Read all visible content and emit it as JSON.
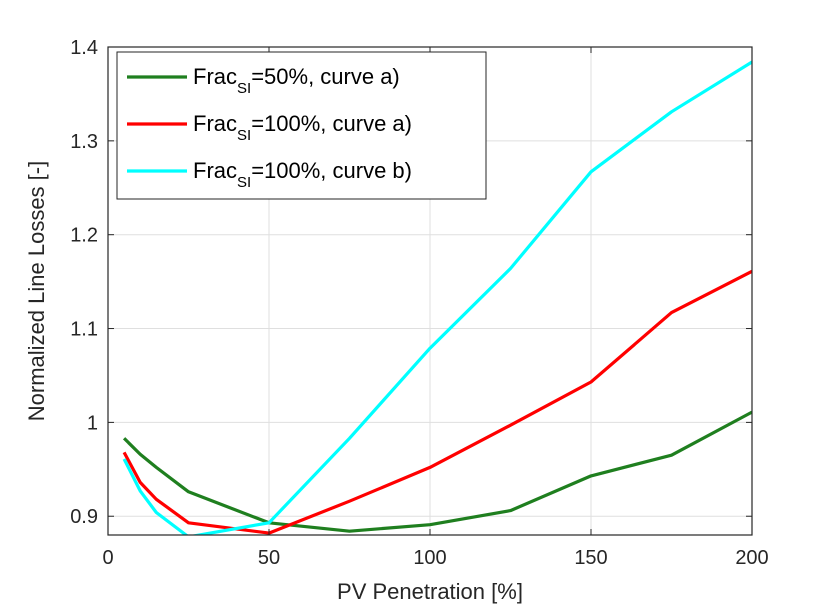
{
  "chart_data": {
    "type": "line",
    "title": "",
    "xlabel": "PV Penetration [%]",
    "ylabel": "Normalized Line Losses [-]",
    "xlim": [
      0,
      200
    ],
    "ylim": [
      0.88,
      1.4
    ],
    "xticks": [
      0,
      50,
      100,
      150,
      200
    ],
    "xtick_labels": [
      "0",
      "50",
      "100",
      "150",
      "200"
    ],
    "yticks": [
      0.9,
      1.0,
      1.1,
      1.2,
      1.3,
      1.4
    ],
    "ytick_labels": [
      "0.9",
      "1",
      "1.1",
      "1.2",
      "1.3",
      "1.4"
    ],
    "grid": true,
    "legend_position": "top-left",
    "series": [
      {
        "name": "Frac_SI=50%, curve a)",
        "legend_main": "Frac",
        "legend_sub": "SI",
        "legend_rest": "=50%, curve a)",
        "color": "#1f7f1f",
        "x": [
          5,
          10,
          15,
          25,
          50,
          75,
          100,
          125,
          150,
          175,
          200
        ],
        "y": [
          0.983,
          0.966,
          0.952,
          0.926,
          0.893,
          0.884,
          0.891,
          0.906,
          0.943,
          0.965,
          1.011
        ]
      },
      {
        "name": "Frac_SI=100%, curve a)",
        "legend_main": "Frac",
        "legend_sub": "SI",
        "legend_rest": "=100%, curve a)",
        "color": "#ff0000",
        "x": [
          5,
          10,
          15,
          25,
          50,
          75,
          100,
          125,
          150,
          175,
          200
        ],
        "y": [
          0.968,
          0.936,
          0.918,
          0.893,
          0.882,
          0.916,
          0.952,
          0.997,
          1.043,
          1.117,
          1.161
        ]
      },
      {
        "name": "Frac_SI=100%, curve b)",
        "legend_main": "Frac",
        "legend_sub": "SI",
        "legend_rest": "=100%, curve b)",
        "color": "#00ffff",
        "x": [
          5,
          10,
          15,
          25,
          50,
          75,
          100,
          125,
          150,
          175,
          200
        ],
        "y": [
          0.961,
          0.927,
          0.904,
          0.878,
          0.893,
          0.983,
          1.079,
          1.164,
          1.267,
          1.331,
          1.384
        ]
      }
    ]
  }
}
